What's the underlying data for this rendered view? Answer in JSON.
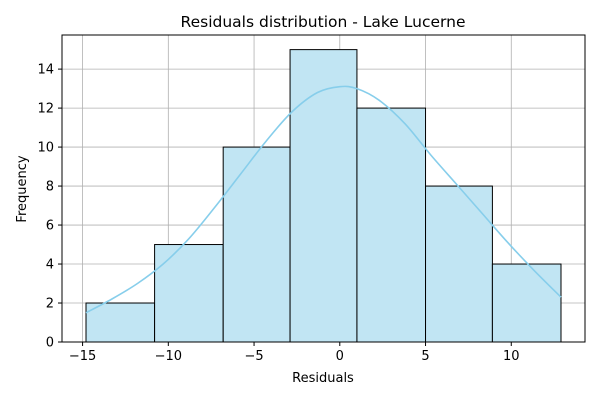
{
  "chart_data": {
    "type": "bar",
    "subtype": "histogram",
    "title": "Residuals distribution - Lake Lucerne",
    "xlabel": "Residuals",
    "ylabel": "Frequency",
    "xlim": [
      -16.2,
      14.3
    ],
    "ylim": [
      0,
      15.75
    ],
    "xticks": [
      -15,
      -10,
      -5,
      0,
      5,
      10
    ],
    "yticks": [
      0,
      2,
      4,
      6,
      8,
      10,
      12,
      14
    ],
    "grid": true,
    "bins": [
      {
        "x0": -14.8,
        "x1": -10.8,
        "value": 2
      },
      {
        "x0": -10.8,
        "x1": -6.8,
        "value": 5
      },
      {
        "x0": -6.8,
        "x1": -2.9,
        "value": 10
      },
      {
        "x0": -2.9,
        "x1": 1.0,
        "value": 15
      },
      {
        "x0": 1.0,
        "x1": 5.0,
        "value": 12
      },
      {
        "x0": 5.0,
        "x1": 8.9,
        "value": 8
      },
      {
        "x0": 8.9,
        "x1": 12.9,
        "value": 4
      }
    ],
    "kde": {
      "x": [
        -14.8,
        -13.3,
        -11.8,
        -10.3,
        -8.8,
        -7.3,
        -5.8,
        -4.3,
        -2.8,
        -1.3,
        0,
        1.0,
        2.3,
        3.8,
        5.3,
        6.8,
        8.3,
        9.8,
        11.3,
        12.9
      ],
      "y": [
        1.5,
        2.2,
        3.0,
        4.0,
        5.3,
        6.9,
        8.6,
        10.3,
        11.8,
        12.8,
        13.1,
        13.0,
        12.4,
        11.2,
        9.6,
        8.1,
        6.6,
        5.1,
        3.7,
        2.3
      ]
    },
    "colors": {
      "bar_fill": "#c1e5f3",
      "bar_edge": "#000000",
      "kde_line": "#87ceeb",
      "grid": "#b0b0b0"
    }
  }
}
